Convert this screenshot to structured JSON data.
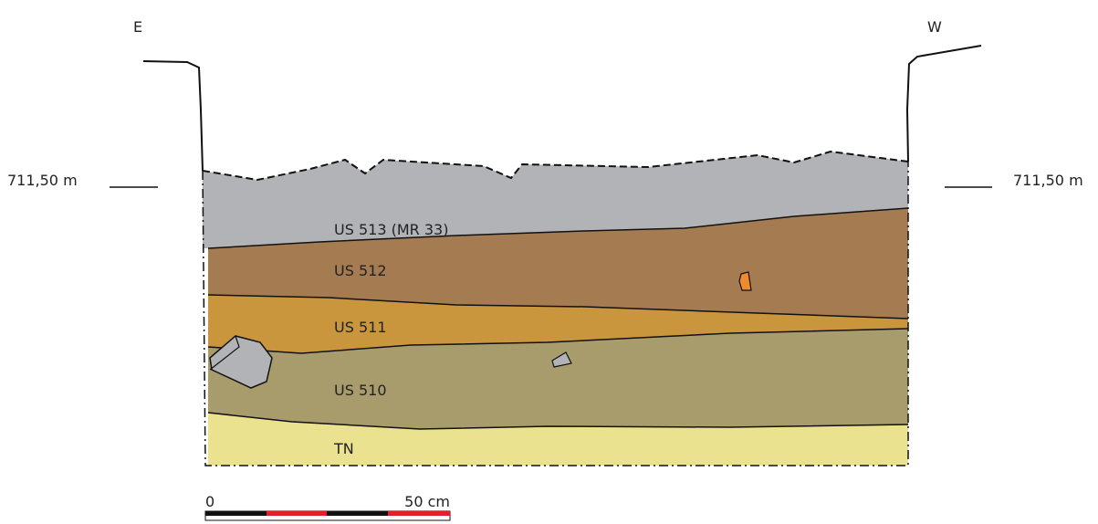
{
  "orientation": {
    "left": "E",
    "right": "W"
  },
  "levels": {
    "left": "711,50 m",
    "right": "711,50 m"
  },
  "layers": [
    "US 513 (MR 33)",
    "US 512",
    "US 511",
    "US 510",
    "TN"
  ],
  "scale": {
    "start": "0",
    "end": "50 cm"
  }
}
